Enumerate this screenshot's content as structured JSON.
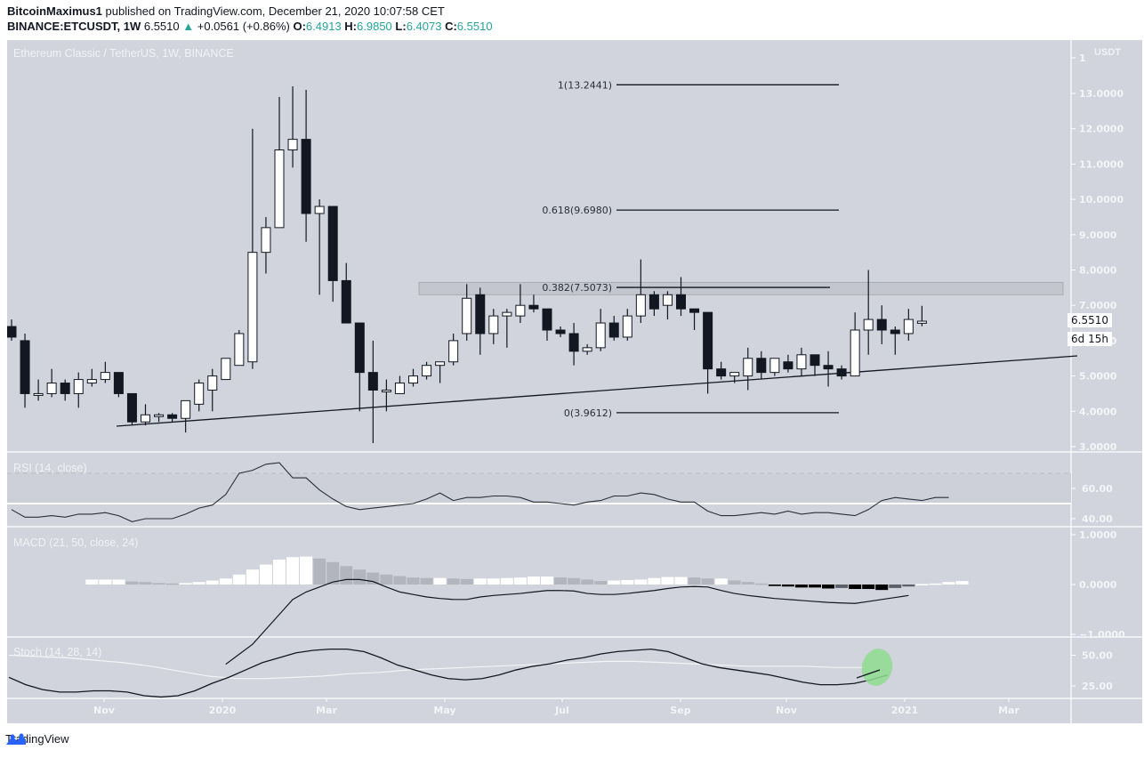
{
  "header": {
    "author": "BitcoinMaximus1",
    "published_text": "published on TradingView.com, December 21, 2020 10:07:58 CET",
    "symbol": "BINANCE:ETCUSDT, 1W",
    "last_price": "6.5510",
    "change_arrow": "▲",
    "change": "+0.0561 (+0.86%)",
    "o_label": "O:",
    "o_value": "6.4913",
    "h_label": "H:",
    "h_value": "6.9850",
    "l_label": "L:",
    "l_value": "6.4073",
    "c_label": "C:",
    "c_value": "6.5510"
  },
  "chart": {
    "title": "Ethereum Classic / TetherUS, 1W, BINANCE",
    "currency": "USDT",
    "price_tag": "6.5510",
    "countdown": "6d 15h",
    "rsi_title": "RSI (14, close)",
    "macd_title": "MACD (21, 50, close, 24)",
    "stoch_title": "Stoch (14, 28, 14)"
  },
  "footer": {
    "brand": "TradingView"
  },
  "colors": {
    "background": "#d1d4dc",
    "bull_candle": "#ffffff",
    "bear_candle": "#131722",
    "highlight_circle": "#8fdc8f",
    "up_teal": "#26a69a"
  },
  "chart_data": [
    {
      "type": "candlestick",
      "title": "Ethereum Classic / TetherUS, 1W, BINANCE",
      "ylabel": "USDT",
      "yticks": [
        3.0,
        4.0,
        5.0,
        6.0,
        7.0,
        8.0,
        9.0,
        10.0,
        11.0,
        12.0,
        13.0
      ],
      "ylim": [
        2.7,
        14.0
      ],
      "xticks": [
        "Nov",
        "2020",
        "Mar",
        "May",
        "Jul",
        "Sep",
        "Nov",
        "2021",
        "Mar"
      ],
      "candles": [
        {
          "o": 6.4,
          "h": 6.6,
          "l": 6.0,
          "c": 6.1
        },
        {
          "o": 6.0,
          "h": 6.2,
          "l": 4.1,
          "c": 4.5
        },
        {
          "o": 4.5,
          "h": 4.9,
          "l": 4.3,
          "c": 4.5
        },
        {
          "o": 4.5,
          "h": 5.2,
          "l": 4.4,
          "c": 4.8
        },
        {
          "o": 4.8,
          "h": 4.9,
          "l": 4.3,
          "c": 4.5
        },
        {
          "o": 4.5,
          "h": 5.1,
          "l": 4.1,
          "c": 4.9
        },
        {
          "o": 4.8,
          "h": 5.2,
          "l": 4.7,
          "c": 4.9
        },
        {
          "o": 4.9,
          "h": 5.4,
          "l": 4.8,
          "c": 5.1
        },
        {
          "o": 5.1,
          "h": 5.1,
          "l": 4.4,
          "c": 4.5
        },
        {
          "o": 4.5,
          "h": 4.5,
          "l": 3.6,
          "c": 3.7
        },
        {
          "o": 3.7,
          "h": 4.2,
          "l": 3.6,
          "c": 3.9
        },
        {
          "o": 3.9,
          "h": 3.95,
          "l": 3.7,
          "c": 3.9
        },
        {
          "o": 3.9,
          "h": 3.95,
          "l": 3.7,
          "c": 3.8
        },
        {
          "o": 3.8,
          "h": 4.3,
          "l": 3.4,
          "c": 4.3
        },
        {
          "o": 4.2,
          "h": 4.9,
          "l": 4.0,
          "c": 4.8
        },
        {
          "o": 4.6,
          "h": 5.2,
          "l": 4.0,
          "c": 5.0
        },
        {
          "o": 4.9,
          "h": 5.5,
          "l": 4.9,
          "c": 5.5
        },
        {
          "o": 5.3,
          "h": 6.3,
          "l": 5.3,
          "c": 6.2
        },
        {
          "o": 5.4,
          "h": 12.0,
          "l": 5.2,
          "c": 8.5
        },
        {
          "o": 8.5,
          "h": 9.5,
          "l": 7.9,
          "c": 9.2
        },
        {
          "o": 9.2,
          "h": 12.9,
          "l": 9.2,
          "c": 11.4
        },
        {
          "o": 11.4,
          "h": 13.2,
          "l": 10.9,
          "c": 11.7
        },
        {
          "o": 11.7,
          "h": 13.1,
          "l": 8.8,
          "c": 9.6
        },
        {
          "o": 9.6,
          "h": 10.0,
          "l": 7.3,
          "c": 9.8
        },
        {
          "o": 9.8,
          "h": 9.8,
          "l": 7.1,
          "c": 7.7
        },
        {
          "o": 7.7,
          "h": 8.2,
          "l": 6.7,
          "c": 6.5
        },
        {
          "o": 6.5,
          "h": 6.5,
          "l": 4.0,
          "c": 5.1
        },
        {
          "o": 5.1,
          "h": 6.0,
          "l": 3.1,
          "c": 4.6
        },
        {
          "o": 4.6,
          "h": 4.9,
          "l": 4.0,
          "c": 4.6
        },
        {
          "o": 4.5,
          "h": 5.0,
          "l": 4.5,
          "c": 4.8
        },
        {
          "o": 4.8,
          "h": 5.2,
          "l": 4.7,
          "c": 5.0
        },
        {
          "o": 5.0,
          "h": 5.4,
          "l": 4.9,
          "c": 5.3
        },
        {
          "o": 5.3,
          "h": 5.4,
          "l": 4.8,
          "c": 5.4
        },
        {
          "o": 5.4,
          "h": 6.2,
          "l": 5.3,
          "c": 6.0
        },
        {
          "o": 6.2,
          "h": 7.6,
          "l": 6.0,
          "c": 7.2
        },
        {
          "o": 7.3,
          "h": 7.5,
          "l": 5.6,
          "c": 6.2
        },
        {
          "o": 6.2,
          "h": 6.9,
          "l": 5.9,
          "c": 6.7
        },
        {
          "o": 6.7,
          "h": 6.9,
          "l": 5.8,
          "c": 6.8
        },
        {
          "o": 6.7,
          "h": 7.6,
          "l": 6.5,
          "c": 7.0
        },
        {
          "o": 7.0,
          "h": 7.3,
          "l": 6.8,
          "c": 6.9
        },
        {
          "o": 6.9,
          "h": 6.9,
          "l": 6.0,
          "c": 6.3
        },
        {
          "o": 6.3,
          "h": 6.4,
          "l": 6.1,
          "c": 6.2
        },
        {
          "o": 6.2,
          "h": 6.5,
          "l": 5.3,
          "c": 5.7
        },
        {
          "o": 5.7,
          "h": 5.9,
          "l": 5.6,
          "c": 5.8
        },
        {
          "o": 5.8,
          "h": 6.9,
          "l": 5.7,
          "c": 6.5
        },
        {
          "o": 6.5,
          "h": 6.7,
          "l": 6.0,
          "c": 6.1
        },
        {
          "o": 6.1,
          "h": 6.9,
          "l": 6.0,
          "c": 6.7
        },
        {
          "o": 6.7,
          "h": 8.3,
          "l": 6.5,
          "c": 7.3
        },
        {
          "o": 7.3,
          "h": 7.4,
          "l": 6.7,
          "c": 6.9
        },
        {
          "o": 7.0,
          "h": 7.4,
          "l": 6.6,
          "c": 7.3
        },
        {
          "o": 7.3,
          "h": 7.8,
          "l": 6.7,
          "c": 6.9
        },
        {
          "o": 6.9,
          "h": 6.8,
          "l": 6.3,
          "c": 6.8
        },
        {
          "o": 6.8,
          "h": 6.8,
          "l": 4.5,
          "c": 5.2
        },
        {
          "o": 5.2,
          "h": 5.4,
          "l": 4.9,
          "c": 5.0
        },
        {
          "o": 5.0,
          "h": 5.1,
          "l": 4.8,
          "c": 5.1
        },
        {
          "o": 5.0,
          "h": 5.8,
          "l": 4.6,
          "c": 5.5
        },
        {
          "o": 5.5,
          "h": 5.7,
          "l": 4.9,
          "c": 5.1
        },
        {
          "o": 5.1,
          "h": 5.5,
          "l": 5.0,
          "c": 5.5
        },
        {
          "o": 5.4,
          "h": 5.6,
          "l": 5.1,
          "c": 5.2
        },
        {
          "o": 5.2,
          "h": 5.8,
          "l": 5.0,
          "c": 5.6
        },
        {
          "o": 5.6,
          "h": 5.6,
          "l": 5.0,
          "c": 5.3
        },
        {
          "o": 5.3,
          "h": 5.7,
          "l": 4.7,
          "c": 5.2
        },
        {
          "o": 5.2,
          "h": 5.3,
          "l": 4.9,
          "c": 5.0
        },
        {
          "o": 5.0,
          "h": 6.8,
          "l": 5.0,
          "c": 6.3
        },
        {
          "o": 6.3,
          "h": 8.0,
          "l": 5.6,
          "c": 6.6
        },
        {
          "o": 6.6,
          "h": 7.0,
          "l": 5.9,
          "c": 6.3
        },
        {
          "o": 6.3,
          "h": 6.4,
          "l": 5.6,
          "c": 6.2
        },
        {
          "o": 6.2,
          "h": 6.9,
          "l": 6.0,
          "c": 6.6
        },
        {
          "o": 6.4913,
          "h": 6.985,
          "l": 6.4073,
          "c": 6.551
        }
      ],
      "annotations": {
        "fib_levels": [
          {
            "label": "1(13.2441)",
            "ratio": 1,
            "price": 13.2441
          },
          {
            "label": "0.618(9.6980)",
            "ratio": 0.618,
            "price": 9.698
          },
          {
            "label": "0.382(7.5073)",
            "ratio": 0.382,
            "price": 7.5073
          },
          {
            "label": "0(3.9612)",
            "ratio": 0,
            "price": 3.9612
          }
        ],
        "resistance_zone": [
          7.3,
          7.65
        ],
        "ascending_support_line": {
          "from_price": 3.55,
          "to_price": 5.55
        }
      }
    },
    {
      "type": "line",
      "title": "RSI (14, close)",
      "yticks": [
        40.0,
        60.0
      ],
      "bands": [
        70,
        50
      ],
      "values": [
        46,
        41,
        41,
        42,
        41,
        43,
        43,
        44,
        42,
        38,
        40,
        40,
        40,
        43,
        47,
        49,
        56,
        70,
        72,
        76,
        77,
        67,
        67,
        59,
        53,
        48,
        46,
        47,
        48,
        49,
        50,
        53,
        57,
        52,
        54,
        54,
        55,
        55,
        54,
        51,
        51,
        50,
        49,
        51,
        52,
        55,
        55,
        57,
        56,
        53,
        51,
        51,
        45,
        42,
        42,
        43,
        44,
        43,
        45,
        43,
        44,
        44,
        43,
        42,
        46,
        52,
        54,
        53,
        52,
        54,
        54
      ]
    },
    {
      "type": "bar+line",
      "title": "MACD (21, 50, close, 24)",
      "yticks": [
        -1.0,
        0.0,
        1.0
      ],
      "histogram": [
        0.1,
        0.1,
        0.1,
        0.06,
        0.05,
        0.03,
        0.02,
        0.03,
        0.05,
        0.08,
        0.12,
        0.2,
        0.3,
        0.4,
        0.5,
        0.55,
        0.56,
        0.52,
        0.45,
        0.37,
        0.3,
        0.24,
        0.2,
        0.17,
        0.14,
        0.13,
        0.13,
        0.12,
        0.11,
        0.12,
        0.12,
        0.13,
        0.14,
        0.16,
        0.16,
        0.14,
        0.13,
        0.1,
        0.07,
        0.08,
        0.09,
        0.1,
        0.13,
        0.15,
        0.15,
        0.14,
        0.12,
        0.12,
        0.08,
        0.05,
        0.02,
        -0.03,
        -0.04,
        -0.06,
        -0.06,
        -0.08,
        -0.07,
        -0.09,
        -0.09,
        -0.11,
        -0.07,
        -0.04,
        0.01,
        0.02,
        0.05,
        0.07
      ],
      "macd_line": [
        -1.6,
        -1.4,
        -1.2,
        -0.9,
        -0.6,
        -0.3,
        -0.15,
        -0.05,
        0.05,
        0.1,
        0.1,
        0.06,
        -0.05,
        -0.15,
        -0.2,
        -0.25,
        -0.28,
        -0.3,
        -0.3,
        -0.25,
        -0.22,
        -0.2,
        -0.18,
        -0.15,
        -0.12,
        -0.12,
        -0.13,
        -0.18,
        -0.2,
        -0.2,
        -0.18,
        -0.15,
        -0.12,
        -0.08,
        -0.05,
        -0.04,
        -0.05,
        -0.12,
        -0.18,
        -0.22,
        -0.25,
        -0.28,
        -0.3,
        -0.32,
        -0.34,
        -0.36,
        -0.37,
        -0.38,
        -0.34,
        -0.3,
        -0.26,
        -0.22
      ]
    },
    {
      "type": "line",
      "title": "Stoch (14, 28, 14)",
      "yticks": [
        25.0,
        50.0
      ],
      "k_values": [
        32,
        26,
        22,
        20,
        20,
        21,
        21,
        20,
        17,
        16,
        17,
        21,
        27,
        32,
        38,
        44,
        48,
        52,
        54,
        55,
        55,
        53,
        48,
        42,
        38,
        34,
        31,
        30,
        31,
        34,
        38,
        41,
        43,
        46,
        48,
        51,
        53,
        54,
        55,
        53,
        48,
        43,
        40,
        38,
        36,
        34,
        31,
        28,
        26,
        26,
        27,
        30,
        34
      ],
      "d_values": [
        50,
        49,
        48,
        46,
        44,
        41,
        37,
        33,
        31,
        31,
        32,
        33,
        35,
        36,
        38,
        39,
        40,
        41,
        42,
        43,
        44,
        45,
        45,
        44,
        43,
        42,
        41,
        41,
        41,
        40,
        40
      ],
      "highlight": "green circle around latest %K crossing up"
    }
  ]
}
